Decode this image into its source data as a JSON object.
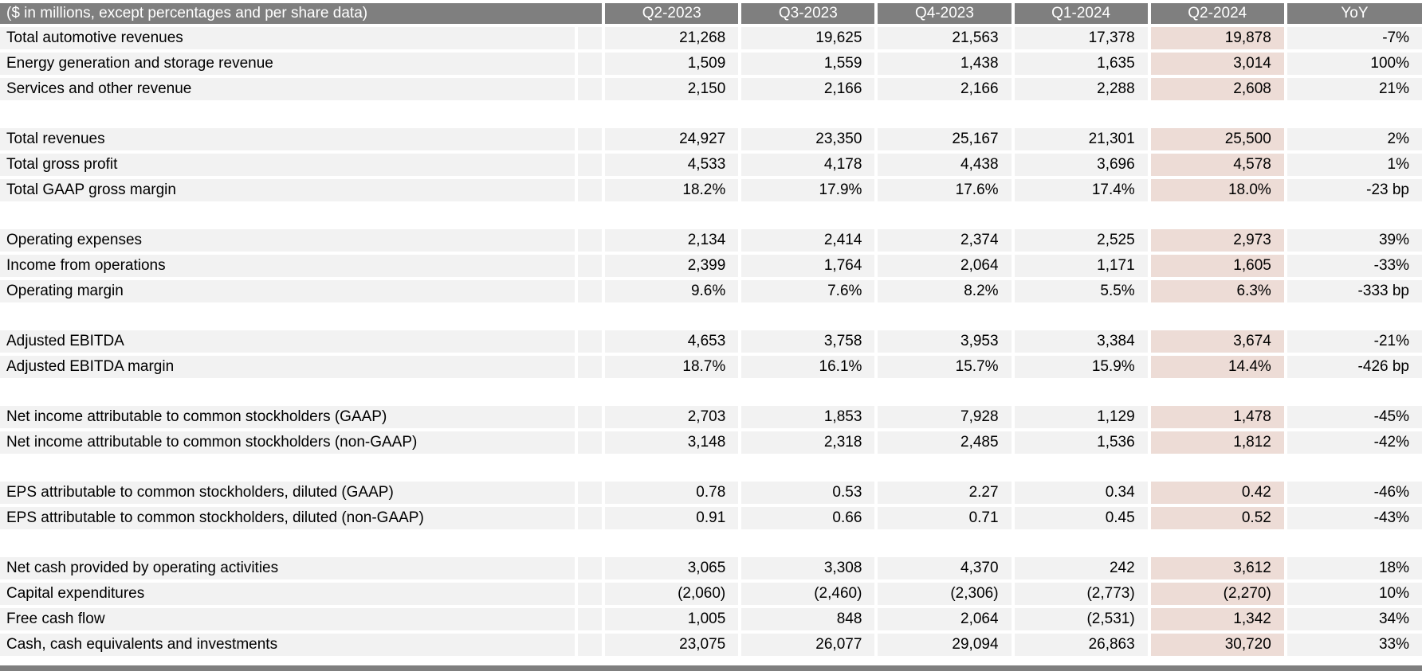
{
  "chart_data": {
    "type": "table",
    "title": "($ in millions, except percentages and per share data)",
    "columns": [
      "Q2-2023",
      "Q3-2023",
      "Q4-2023",
      "Q1-2024",
      "Q2-2024",
      "YoY"
    ],
    "highlighted_column": "Q2-2024",
    "rows": [
      {
        "label": "Total automotive revenues",
        "values": [
          "21,268",
          "19,625",
          "21,563",
          "17,378",
          "19,878",
          "-7%"
        ]
      },
      {
        "label": "Energy generation and storage revenue",
        "values": [
          "1,509",
          "1,559",
          "1,438",
          "1,635",
          "3,014",
          "100%"
        ]
      },
      {
        "label": "Services and other revenue",
        "values": [
          "2,150",
          "2,166",
          "2,166",
          "2,288",
          "2,608",
          "21%"
        ]
      },
      {
        "spacer": true
      },
      {
        "label": "Total revenues",
        "values": [
          "24,927",
          "23,350",
          "25,167",
          "21,301",
          "25,500",
          "2%"
        ]
      },
      {
        "label": "Total gross profit",
        "values": [
          "4,533",
          "4,178",
          "4,438",
          "3,696",
          "4,578",
          "1%"
        ]
      },
      {
        "label": "Total GAAP gross margin",
        "values": [
          "18.2%",
          "17.9%",
          "17.6%",
          "17.4%",
          "18.0%",
          "-23 bp"
        ]
      },
      {
        "spacer": true
      },
      {
        "label": "Operating expenses",
        "values": [
          "2,134",
          "2,414",
          "2,374",
          "2,525",
          "2,973",
          "39%"
        ]
      },
      {
        "label": "Income from operations",
        "values": [
          "2,399",
          "1,764",
          "2,064",
          "1,171",
          "1,605",
          "-33%"
        ]
      },
      {
        "label": "Operating margin",
        "values": [
          "9.6%",
          "7.6%",
          "8.2%",
          "5.5%",
          "6.3%",
          "-333 bp"
        ]
      },
      {
        "spacer": true
      },
      {
        "label": "Adjusted EBITDA",
        "values": [
          "4,653",
          "3,758",
          "3,953",
          "3,384",
          "3,674",
          "-21%"
        ]
      },
      {
        "label": "Adjusted EBITDA margin",
        "values": [
          "18.7%",
          "16.1%",
          "15.7%",
          "15.9%",
          "14.4%",
          "-426 bp"
        ]
      },
      {
        "spacer": true
      },
      {
        "label": "Net income attributable to common stockholders (GAAP)",
        "values": [
          "2,703",
          "1,853",
          "7,928",
          "1,129",
          "1,478",
          "-45%"
        ]
      },
      {
        "label": "Net income attributable to common stockholders (non-GAAP)",
        "values": [
          "3,148",
          "2,318",
          "2,485",
          "1,536",
          "1,812",
          "-42%"
        ]
      },
      {
        "spacer": true
      },
      {
        "label": "EPS attributable to common stockholders, diluted (GAAP)",
        "values": [
          "0.78",
          "0.53",
          "2.27",
          "0.34",
          "0.42",
          "-46%"
        ]
      },
      {
        "label": "EPS attributable to common stockholders, diluted (non-GAAP)",
        "values": [
          "0.91",
          "0.66",
          "0.71",
          "0.45",
          "0.52",
          "-43%"
        ]
      },
      {
        "spacer": true
      },
      {
        "label": "Net cash provided by operating activities",
        "values": [
          "3,065",
          "3,308",
          "4,370",
          "242",
          "3,612",
          "18%"
        ]
      },
      {
        "label": "Capital expenditures",
        "values": [
          "(2,060)",
          "(2,460)",
          "(2,306)",
          "(2,773)",
          "(2,270)",
          "10%"
        ]
      },
      {
        "label": "Free cash flow",
        "values": [
          "1,005",
          "848",
          "2,064",
          "(2,531)",
          "1,342",
          "34%"
        ]
      },
      {
        "label": "Cash, cash equivalents and investments",
        "values": [
          "23,075",
          "26,077",
          "29,094",
          "26,863",
          "30,720",
          "33%"
        ]
      }
    ]
  },
  "colors": {
    "header_bg": "#7f7f7f",
    "header_text": "#ffffff",
    "row_bg": "#f2f2f2",
    "highlight_bg": "#eddcd6",
    "text": "#000000",
    "footer_bar": "#7f7f7f"
  }
}
